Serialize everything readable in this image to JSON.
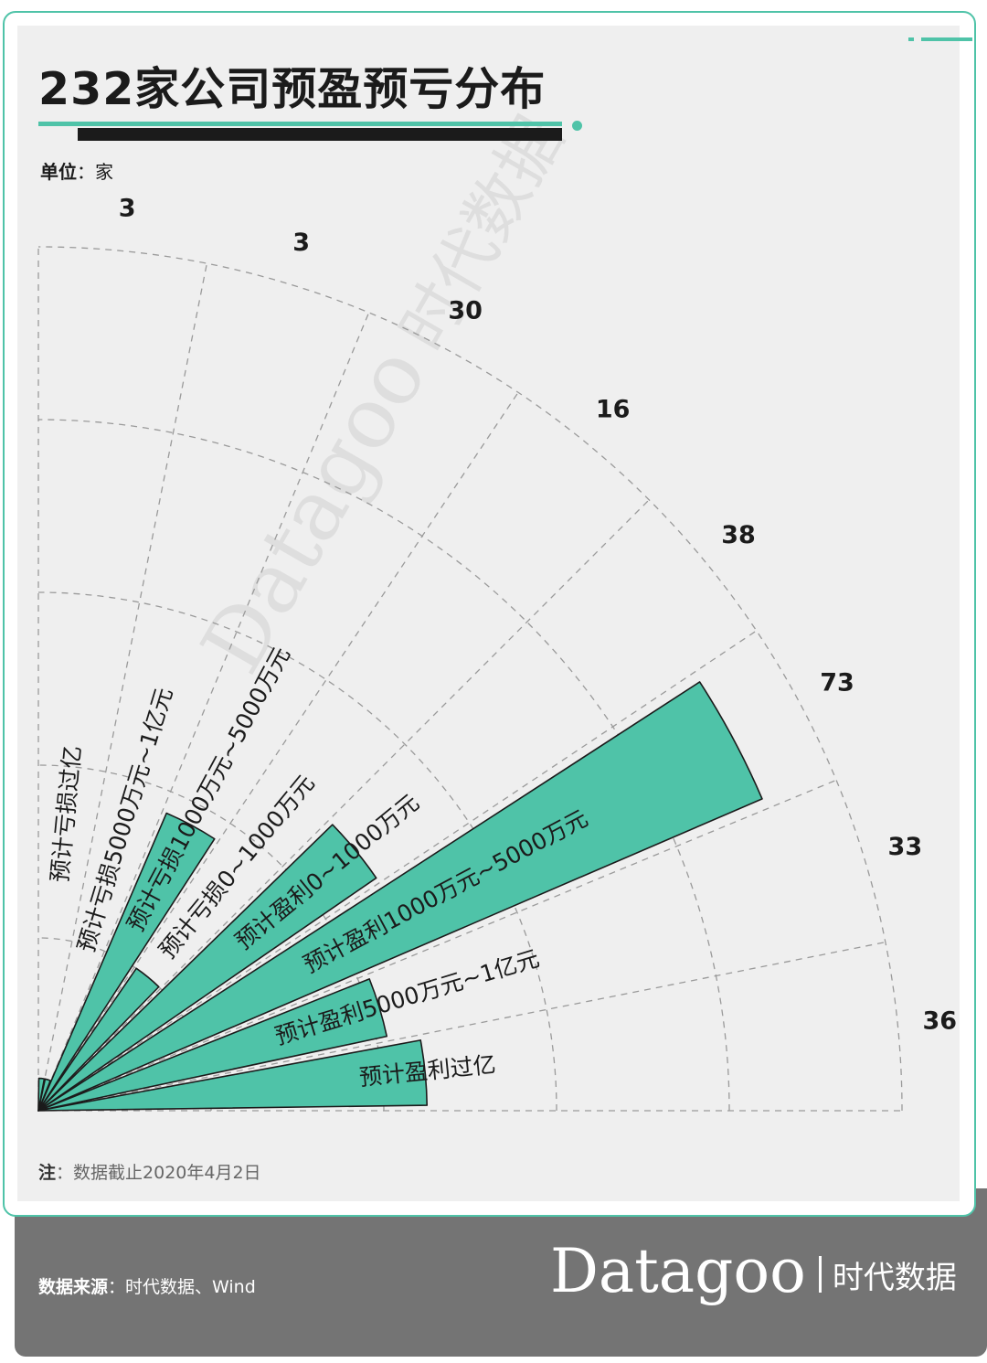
{
  "title": "232家公司预盈预亏分布",
  "unit": {
    "label": "单位",
    "value": "家"
  },
  "note": {
    "label": "注",
    "text": "数据截止2020年4月2日"
  },
  "source": {
    "label": "数据来源",
    "text": "时代数据、Wind"
  },
  "brand": {
    "logo": "Datagoo",
    "cn": "时代数据"
  },
  "watermark": {
    "logo": "Datagoo",
    "cn": "时代数据"
  },
  "colors": {
    "bar": "#4fc3a8",
    "accent": "#4fc3a8",
    "dark": "#1b1b1b",
    "footer": "#747474",
    "panel": "#efefef"
  },
  "chart_data": {
    "type": "bar",
    "subtype": "polar-rose",
    "categories": [
      "预计亏损过亿",
      "预计亏损5000万元~1亿元",
      "预计亏损1000万元~5000万元",
      "预计亏损0~1000万元",
      "预计盈利0~1000万元",
      "预计盈利1000万元~5000万元",
      "预计盈利5000万元~1亿元",
      "预计盈利过亿"
    ],
    "values": [
      3,
      3,
      30,
      16,
      38,
      73,
      33,
      36
    ],
    "grid": true
  }
}
